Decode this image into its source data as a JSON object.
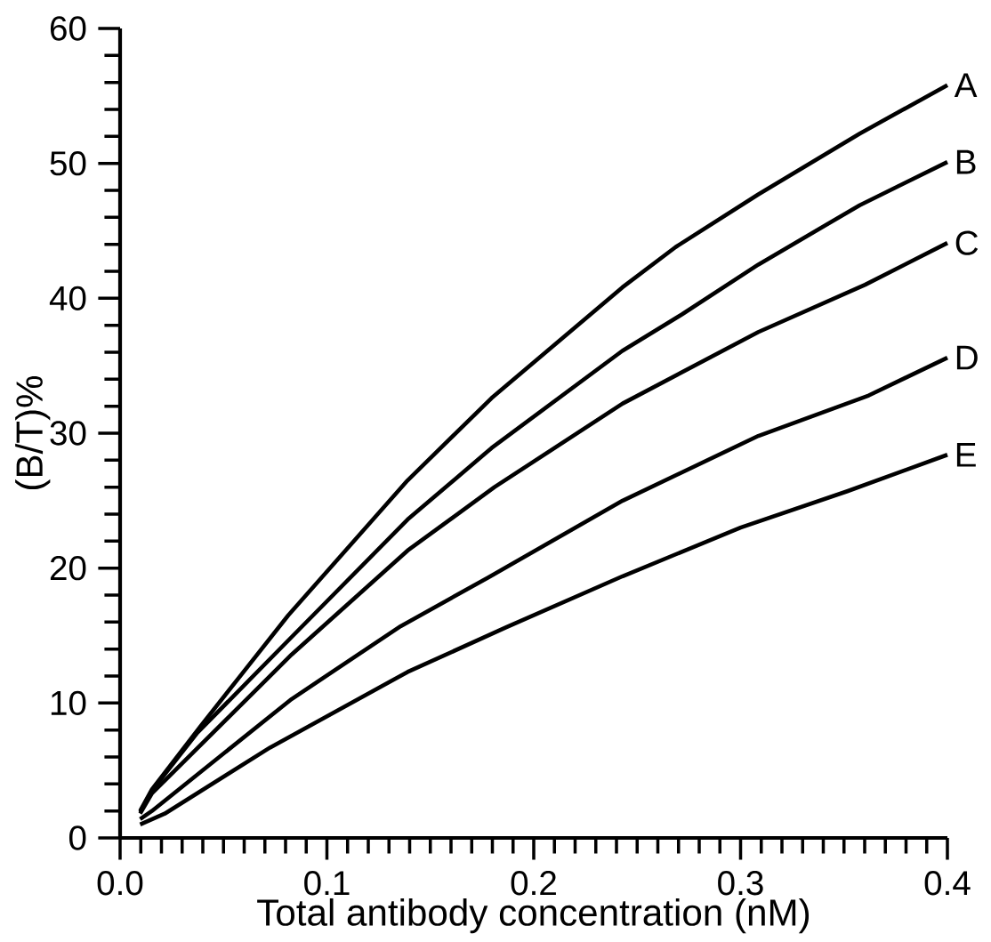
{
  "chart_data": {
    "type": "line",
    "xlabel": "Total antibody concentration (nM)",
    "ylabel": "(B/T)%",
    "xlim": [
      0,
      0.4
    ],
    "ylim": [
      0,
      60
    ],
    "xticks": [
      {
        "value": 0,
        "label": "0.0"
      },
      0.1,
      0.2,
      0.3,
      0.4
    ],
    "yticks": [
      0,
      10,
      20,
      30,
      40,
      50,
      60
    ],
    "grid": false,
    "marker": "none",
    "line_style": "solid",
    "series": [
      {
        "name": "A",
        "color": "#000000",
        "x": [
          0.0097,
          0.0154,
          0.039,
          0.0813,
          0.139,
          0.1796,
          0.2428,
          0.2686,
          0.3086,
          0.3576,
          0.4
        ],
        "values": [
          2.0,
          3.6,
          8.3,
          16.5,
          26.5,
          32.6,
          40.8,
          43.8,
          47.7,
          52.2,
          55.8
        ]
      },
      {
        "name": "B",
        "color": "#000000",
        "x": [
          0.0097,
          0.0154,
          0.0374,
          0.083,
          0.139,
          0.1796,
          0.2428,
          0.2716,
          0.3086,
          0.3576,
          0.4
        ],
        "values": [
          1.9,
          3.5,
          7.8,
          14.9,
          23.6,
          28.9,
          36.1,
          38.8,
          42.5,
          46.9,
          50.1
        ]
      },
      {
        "name": "C",
        "color": "#000000",
        "x": [
          0.0097,
          0.0154,
          0.083,
          0.139,
          0.181,
          0.243,
          0.3086,
          0.3602,
          0.4
        ],
        "values": [
          1.8,
          3.3,
          13.6,
          21.3,
          26.0,
          32.2,
          37.5,
          41.0,
          44.1
        ]
      },
      {
        "name": "D",
        "color": "#000000",
        "x": [
          0.0097,
          0.0154,
          0.083,
          0.1357,
          0.178,
          0.243,
          0.3086,
          0.362,
          0.4
        ],
        "values": [
          1.4,
          2.0,
          10.3,
          15.7,
          19.3,
          25.0,
          29.8,
          32.8,
          35.6
        ]
      },
      {
        "name": "E",
        "color": "#000000",
        "x": [
          0.0097,
          0.0216,
          0.0725,
          0.139,
          0.1865,
          0.243,
          0.3,
          0.3516,
          0.4
        ],
        "values": [
          1.0,
          1.8,
          6.7,
          12.3,
          15.6,
          19.4,
          23.0,
          25.7,
          28.4
        ]
      }
    ]
  }
}
